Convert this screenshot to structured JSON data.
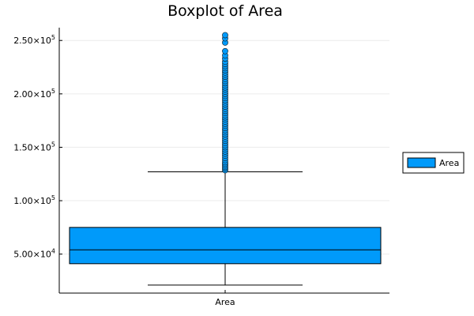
{
  "chart_data": {
    "type": "box",
    "title": "Boxplot of Area",
    "categories": [
      "Area"
    ],
    "series": [
      {
        "name": "Area",
        "color": "#009AFA",
        "q1": 41000,
        "median": 54000,
        "q3": 75000,
        "whisker_low": 21000,
        "whisker_high": 127000,
        "outliers": [
          128500,
          130000,
          131500,
          133000,
          134500,
          136000,
          138000,
          140000,
          142000,
          144000,
          146000,
          148000,
          150000,
          152000,
          154000,
          156000,
          158000,
          160000,
          162000,
          164000,
          166000,
          168000,
          170000,
          172000,
          174000,
          176000,
          178000,
          180000,
          182000,
          184000,
          186000,
          188000,
          190000,
          192000,
          194000,
          196000,
          198000,
          200000,
          202000,
          204000,
          206000,
          208000,
          210000,
          212000,
          214000,
          216000,
          218000,
          220000,
          222000,
          224000,
          226000,
          228000,
          230000,
          233000,
          236000,
          240000,
          248000,
          252000,
          255000
        ]
      }
    ],
    "yticks": [
      {
        "value": 50000,
        "mant": "5.00",
        "exp": "4"
      },
      {
        "value": 100000,
        "mant": "1.00",
        "exp": "5"
      },
      {
        "value": 150000,
        "mant": "1.50",
        "exp": "5"
      },
      {
        "value": 200000,
        "mant": "2.00",
        "exp": "5"
      },
      {
        "value": 250000,
        "mant": "2.50",
        "exp": "5"
      }
    ],
    "ylim": [
      13500,
      262000
    ],
    "grid": true,
    "legend_position": "right"
  }
}
